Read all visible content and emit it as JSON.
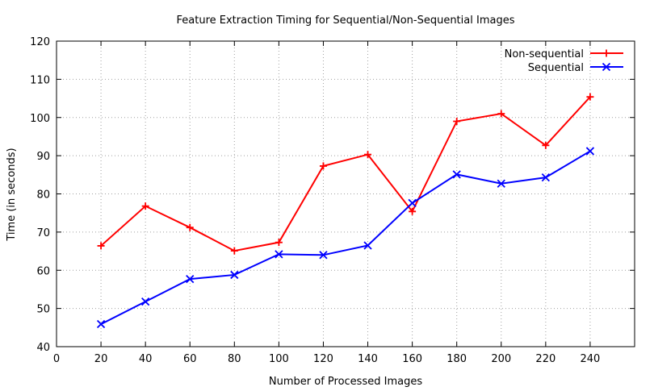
{
  "chart_data": {
    "type": "line",
    "title": "Feature Extraction Timing for Sequential/Non-Sequential Images",
    "xlabel": "Number of Processed Images",
    "ylabel": "Time (in seconds)",
    "xlim": [
      0,
      260
    ],
    "ylim": [
      40,
      120
    ],
    "xticks": [
      0,
      20,
      40,
      60,
      80,
      100,
      120,
      140,
      160,
      180,
      200,
      220,
      240
    ],
    "yticks": [
      40,
      50,
      60,
      70,
      80,
      90,
      100,
      110,
      120
    ],
    "grid": true,
    "legend_position": "top-right",
    "x": [
      20,
      40,
      60,
      80,
      100,
      120,
      140,
      160,
      180,
      200,
      220,
      240
    ],
    "series": [
      {
        "name": "Non-sequential",
        "color": "#ff0000",
        "marker": "plus",
        "values": [
          66.4,
          76.8,
          71.2,
          65.1,
          67.3,
          87.3,
          90.3,
          75.4,
          99.0,
          101.0,
          92.7,
          105.4
        ]
      },
      {
        "name": "Sequential",
        "color": "#0000ff",
        "marker": "cross",
        "values": [
          45.9,
          51.8,
          57.7,
          58.8,
          64.2,
          64.0,
          66.5,
          77.6,
          85.1,
          82.7,
          84.3,
          91.2
        ]
      }
    ]
  }
}
